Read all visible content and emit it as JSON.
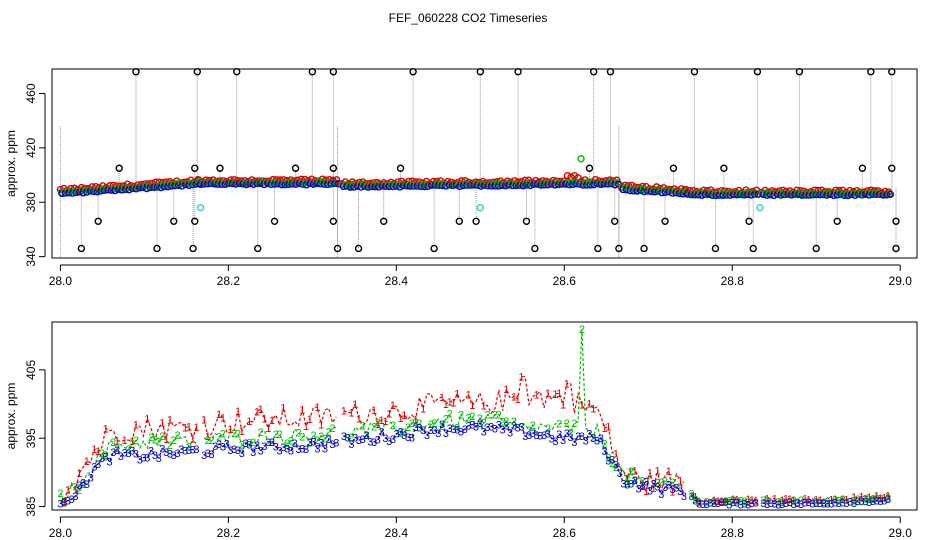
{
  "title": "FEF_060228  CO2 Timeseries",
  "colors": {
    "series1": "#dd0000",
    "series2": "#00bb00",
    "series3": "#0000cc",
    "outlier": "#000000",
    "flagged": "#33cccc",
    "connector": "#999999"
  },
  "chart_data": [
    {
      "type": "scatter",
      "name": "top-panel",
      "xlabel": "",
      "ylabel": "approx. ppm",
      "xlim": [
        27.99,
        29.02
      ],
      "ylim": [
        339,
        478
      ],
      "xticks": [
        "28.0",
        "28.2",
        "28.4",
        "28.6",
        "28.8",
        "29.0"
      ],
      "xtick_values": [
        28.0,
        28.2,
        28.4,
        28.6,
        28.8,
        29.0
      ],
      "yticks": [
        "340",
        "380",
        "420",
        "460"
      ],
      "ytick_values": [
        340,
        380,
        420,
        460
      ],
      "marker": "open-circle",
      "segments": [
        {
          "from": 28.0,
          "to": 28.165,
          "start": 386,
          "end": 393
        },
        {
          "from": 28.165,
          "to": 28.33,
          "start": 393,
          "end": 393
        },
        {
          "from": 28.335,
          "to": 28.665,
          "start": 391,
          "end": 393
        },
        {
          "from": 28.668,
          "to": 28.745,
          "start": 389,
          "end": 386
        },
        {
          "from": 28.745,
          "to": 28.83,
          "start": 385,
          "end": 385
        },
        {
          "from": 28.835,
          "to": 28.99,
          "start": 385,
          "end": 385
        }
      ],
      "outliers_high": [
        28.09,
        28.163,
        28.21,
        28.3,
        28.325,
        28.42,
        28.5,
        28.545,
        28.635,
        28.655,
        28.755,
        28.83,
        28.88,
        28.965,
        28.99
      ],
      "outliers_mid": [
        28.07,
        28.16,
        28.19,
        28.28,
        28.325,
        28.405,
        28.63,
        28.73,
        28.79,
        28.955,
        28.99
      ],
      "outliers_low_366": [
        28.045,
        28.135,
        28.16,
        28.255,
        28.325,
        28.385,
        28.475,
        28.495,
        28.555,
        28.66,
        28.72,
        28.82,
        28.925,
        28.995
      ],
      "outliers_low_346": [
        28.025,
        28.115,
        28.158,
        28.235,
        28.33,
        28.355,
        28.445,
        28.565,
        28.64,
        28.665,
        28.695,
        28.78,
        28.825,
        28.9,
        28.995
      ],
      "flagged_points": [
        {
          "x": 28.167,
          "y": 376
        },
        {
          "x": 28.5,
          "y": 376
        },
        {
          "x": 28.833,
          "y": 376
        }
      ],
      "green_spike": {
        "x": 28.62,
        "y": 412
      }
    },
    {
      "type": "line",
      "name": "bottom-panel",
      "xlabel": "",
      "ylabel": "approx. ppm",
      "xlim": [
        27.99,
        29.02
      ],
      "ylim": [
        384.5,
        412
      ],
      "xticks": [
        "28.0",
        "28.2",
        "28.4",
        "28.6",
        "28.8",
        "29.0"
      ],
      "xtick_values": [
        28.0,
        28.2,
        28.4,
        28.6,
        28.8,
        29.0
      ],
      "yticks": [
        "385",
        "395",
        "405"
      ],
      "ytick_values": [
        385,
        395,
        405
      ],
      "series": [
        {
          "name": "1",
          "label": "1",
          "x": [
            28.0,
            28.02,
            28.04,
            28.06,
            28.1,
            28.15,
            28.2,
            28.3,
            28.4,
            28.45,
            28.5,
            28.55,
            28.6,
            28.64,
            28.67,
            28.7,
            28.72,
            28.74,
            28.76,
            28.8,
            28.9,
            28.99
          ],
          "values": [
            386.5,
            389.5,
            393,
            396,
            396.5,
            396.5,
            397.5,
            398,
            399,
            400,
            400,
            401,
            401,
            399,
            390,
            388.5,
            389,
            388,
            386,
            386,
            386,
            386.5
          ]
        },
        {
          "name": "2",
          "label": "2",
          "x": [
            28.0,
            28.02,
            28.04,
            28.06,
            28.1,
            28.15,
            28.2,
            28.3,
            28.4,
            28.45,
            28.5,
            28.55,
            28.6,
            28.64,
            28.67,
            28.7,
            28.72,
            28.74,
            28.76,
            28.8,
            28.9,
            28.99
          ],
          "values": [
            386.3,
            388,
            391.5,
            393.8,
            394.5,
            394.5,
            395,
            395.5,
            396.5,
            397.5,
            397.5,
            396.5,
            396.5,
            396,
            389.5,
            388.3,
            388.5,
            388.3,
            385.8,
            385.8,
            385.8,
            386.2
          ]
        },
        {
          "name": "3",
          "label": "3",
          "x": [
            28.0,
            28.02,
            28.04,
            28.06,
            28.1,
            28.15,
            28.2,
            28.3,
            28.4,
            28.45,
            28.5,
            28.55,
            28.6,
            28.64,
            28.67,
            28.7,
            28.72,
            28.74,
            28.76,
            28.8,
            28.9,
            28.99
          ],
          "values": [
            386,
            387,
            390.5,
            392.5,
            392.5,
            393,
            393.5,
            394,
            395.5,
            396.5,
            396.5,
            396,
            395,
            395,
            389,
            388,
            387.5,
            387.5,
            385.5,
            385.5,
            385.5,
            386
          ]
        }
      ],
      "spikes": [
        {
          "series": "1",
          "x": 28.55,
          "value": 404
        },
        {
          "series": "1",
          "x": 28.605,
          "value": 403
        },
        {
          "series": "2",
          "x": 28.621,
          "value": 411
        },
        {
          "series": "2",
          "x": 28.519,
          "value": 398.5
        }
      ]
    }
  ]
}
